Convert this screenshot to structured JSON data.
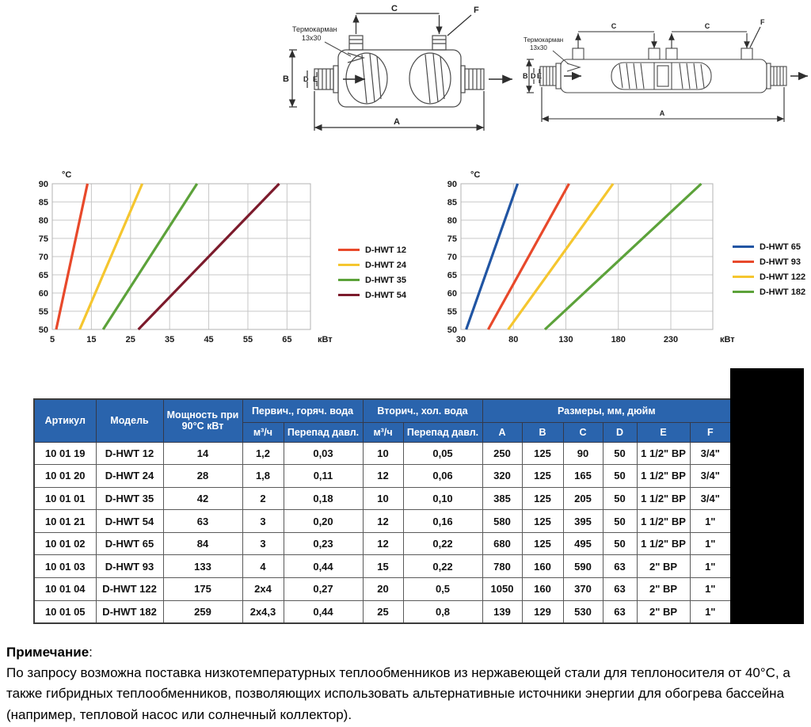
{
  "dims": {
    "a": "A",
    "b": "B",
    "c": "C",
    "d": "D",
    "e": "E",
    "f": "F"
  },
  "diagrams": {
    "thermowell_line1": "Термокарман",
    "thermowell_line2": "13x30"
  },
  "chart_data": [
    {
      "type": "line",
      "title": "",
      "ylabel": "°C",
      "xlabel": "кВт",
      "xlim": [
        5,
        71
      ],
      "ylim": [
        50,
        90
      ],
      "xticks": [
        5,
        15,
        25,
        35,
        45,
        55,
        65
      ],
      "yticks": [
        50,
        55,
        60,
        65,
        70,
        75,
        80,
        85,
        90
      ],
      "grid": true,
      "legend_position": "right",
      "series": [
        {
          "name": "D-HWT 12",
          "color": "#E8492B",
          "points": [
            [
              6,
              50
            ],
            [
              14,
              90
            ]
          ]
        },
        {
          "name": "D-HWT 24",
          "color": "#F5C62F",
          "points": [
            [
              12,
              50
            ],
            [
              28,
              90
            ]
          ]
        },
        {
          "name": "D-HWT 35",
          "color": "#5CA23A",
          "points": [
            [
              18,
              50
            ],
            [
              42,
              90
            ]
          ]
        },
        {
          "name": "D-HWT 54",
          "color": "#7C1B2C",
          "points": [
            [
              27,
              50
            ],
            [
              63,
              90
            ]
          ]
        }
      ]
    },
    {
      "type": "line",
      "title": "",
      "ylabel": "°C",
      "xlabel": "кВт",
      "xlim": [
        30,
        270
      ],
      "ylim": [
        50,
        90
      ],
      "xticks": [
        30,
        80,
        130,
        180,
        230
      ],
      "yticks": [
        50,
        55,
        60,
        65,
        70,
        75,
        80,
        85,
        90
      ],
      "grid": true,
      "legend_position": "right",
      "series": [
        {
          "name": "D-HWT 65",
          "color": "#2155A3",
          "points": [
            [
              35,
              50
            ],
            [
              84,
              90
            ]
          ]
        },
        {
          "name": "D-HWT 93",
          "color": "#E8492B",
          "points": [
            [
              56,
              50
            ],
            [
              133,
              90
            ]
          ]
        },
        {
          "name": "D-HWT 122",
          "color": "#F5C62F",
          "points": [
            [
              75,
              50
            ],
            [
              175,
              90
            ]
          ]
        },
        {
          "name": "D-HWT 182",
          "color": "#5CA23A",
          "points": [
            [
              110,
              50
            ],
            [
              259,
              90
            ]
          ]
        }
      ]
    }
  ],
  "table": {
    "header": {
      "artikul": "Артикул",
      "model": "Модель",
      "power": "Мощность при 90°С кВт",
      "primary": "Первич., горяч. вода",
      "secondary": "Вторич., хол. вода",
      "dimensions": "Размеры, мм, дюйм",
      "flow": "м³/ч",
      "pressure_drop": "Перепад давл.",
      "dim_cols": [
        "A",
        "B",
        "C",
        "D",
        "E",
        "F"
      ]
    },
    "rows": [
      [
        "10 01 19",
        "D-HWT 12",
        "14",
        "1,2",
        "0,03",
        "10",
        "0,05",
        "250",
        "125",
        "90",
        "50",
        "1 1/2\" ВР",
        "3/4\""
      ],
      [
        "10 01 20",
        "D-HWT 24",
        "28",
        "1,8",
        "0,11",
        "12",
        "0,06",
        "320",
        "125",
        "165",
        "50",
        "1 1/2\" ВР",
        "3/4\""
      ],
      [
        "10 01 01",
        "D-HWT 35",
        "42",
        "2",
        "0,18",
        "10",
        "0,10",
        "385",
        "125",
        "205",
        "50",
        "1 1/2\" ВР",
        "3/4\""
      ],
      [
        "10 01 21",
        "D-HWT 54",
        "63",
        "3",
        "0,20",
        "12",
        "0,16",
        "580",
        "125",
        "395",
        "50",
        "1 1/2\" ВР",
        "1\""
      ],
      [
        "10 01 02",
        "D-HWT 65",
        "84",
        "3",
        "0,23",
        "12",
        "0,22",
        "680",
        "125",
        "495",
        "50",
        "1 1/2\" ВР",
        "1\""
      ],
      [
        "10 01 03",
        "D-HWT 93",
        "133",
        "4",
        "0,44",
        "15",
        "0,22",
        "780",
        "160",
        "590",
        "63",
        "2\" ВР",
        "1\""
      ],
      [
        "10 01 04",
        "D-HWT 122",
        "175",
        "2x4",
        "0,27",
        "20",
        "0,5",
        "1050",
        "160",
        "370",
        "63",
        "2\" ВР",
        "1\""
      ],
      [
        "10 01 05",
        "D-HWT 182",
        "259",
        "2x4,3",
        "0,44",
        "25",
        "0,8",
        "139",
        "129",
        "530",
        "63",
        "2\" ВР",
        "1\""
      ]
    ]
  },
  "note": {
    "title": "Примечание",
    "colon": ":",
    "text": "По запросу возможна поставка низкотемпературных теплообменников из нержавеющей стали для теплоносителя от 40°С, а также гибридных теплообменников, позволяющих использовать альтернативные источники энергии для обогрева бассейна (например, тепловой насос или солнечный коллектор)."
  }
}
